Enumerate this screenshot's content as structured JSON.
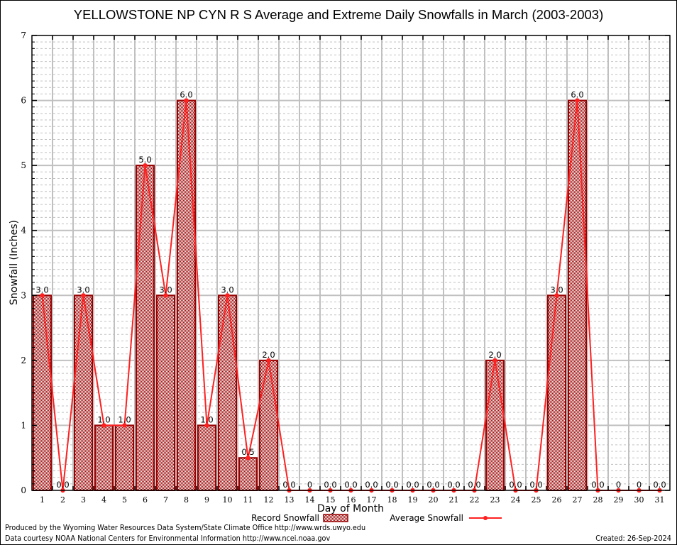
{
  "chart_data": {
    "type": "bar",
    "title": "YELLOWSTONE NP CYN R S Average and Extreme Daily Snowfalls in March (2003-2003)",
    "xlabel": "Day of Month",
    "ylabel": "Snowfall (Inches)",
    "ylim": [
      0,
      7
    ],
    "yticks": [
      "0",
      "1",
      "2",
      "3",
      "4",
      "5",
      "6",
      "7"
    ],
    "grid": true,
    "legend_position": "bottom-center",
    "categories": [
      "1",
      "2",
      "3",
      "4",
      "5",
      "6",
      "7",
      "8",
      "9",
      "10",
      "11",
      "12",
      "13",
      "14",
      "15",
      "16",
      "17",
      "18",
      "19",
      "20",
      "21",
      "22",
      "23",
      "24",
      "25",
      "26",
      "27",
      "28",
      "29",
      "30",
      "31"
    ],
    "series": [
      {
        "name": "Record Snowfall",
        "type": "bar",
        "color": "#990000",
        "values": [
          3.0,
          0.0,
          3.0,
          1.0,
          1.0,
          5.0,
          3.0,
          6.0,
          1.0,
          3.0,
          0.5,
          2.0,
          0.0,
          0,
          0.0,
          0.0,
          0.0,
          0.0,
          0.0,
          0.0,
          0.0,
          0.0,
          2.0,
          0.0,
          0.0,
          3.0,
          6.0,
          0.0,
          0,
          0,
          0.0
        ],
        "labels": [
          "3.0",
          "0.0",
          "3.0",
          "1.0",
          "1.0",
          "5.0",
          "3.0",
          "6.0",
          "1.0",
          "3.0",
          "0.5",
          "2.0",
          "0.0",
          "0",
          "0.0",
          "0.0",
          "0.0",
          "0.0",
          "0.0",
          "0.0",
          "0.0",
          "0.0",
          "2.0",
          "0.0",
          "0.0",
          "3.0",
          "6.0",
          "0.0",
          "0",
          "0",
          "0.0"
        ]
      },
      {
        "name": "Average Snowfall",
        "type": "line",
        "color": "#ff2020",
        "values": [
          3.0,
          0.0,
          3.0,
          1.0,
          1.0,
          5.0,
          3.0,
          6.0,
          1.0,
          3.0,
          0.5,
          2.0,
          0.0,
          0,
          0.0,
          0.0,
          0.0,
          0.0,
          0.0,
          0.0,
          0.0,
          0.0,
          2.0,
          0.0,
          0.0,
          3.0,
          6.0,
          0.0,
          0,
          0,
          0.0
        ]
      }
    ]
  },
  "footer": {
    "produced_by": "Produced by the Wyoming Water Resources Data System/State Climate Office http://www.wrds.uwyo.edu",
    "data_courtesy": "Data courtesy NOAA National Centers for Environmental Information http://www.ncei.noaa.gov",
    "created": "Created: 26-Sep-2024"
  }
}
